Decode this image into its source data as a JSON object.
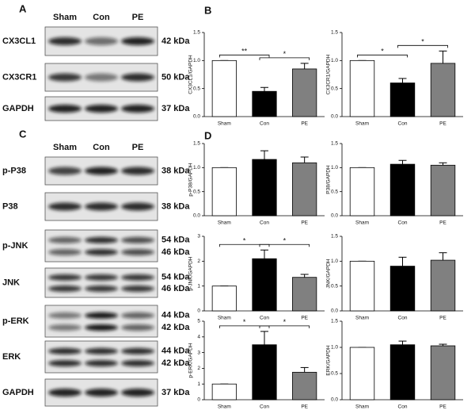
{
  "panel_labels": [
    "A",
    "B",
    "C",
    "D"
  ],
  "blots": [
    {
      "lanes": [
        "Sham",
        "Con",
        "PE"
      ],
      "rows": [
        {
          "label": "CX3CL1",
          "kda": [
            "42 kDa"
          ]
        },
        {
          "label": "CX3CR1",
          "kda": [
            "50 kDa"
          ]
        },
        {
          "label": "GAPDH",
          "kda": [
            "37 kDa"
          ]
        }
      ]
    },
    {
      "lanes": [
        "Sham",
        "Con",
        "PE"
      ],
      "rows": [
        {
          "label": "p-P38",
          "kda": [
            "38 kDa"
          ]
        },
        {
          "label": "P38",
          "kda": [
            "38 kDa"
          ]
        },
        {
          "label": "p-JNK",
          "kda": [
            "54 kDa",
            "46 kDa"
          ]
        },
        {
          "label": "JNK",
          "kda": [
            "54 kDa",
            "46 kDa"
          ]
        },
        {
          "label": "p-ERK",
          "kda": [
            "44 kDa",
            "42 kDa"
          ]
        },
        {
          "label": "ERK",
          "kda": [
            "44 kDa",
            "42 kDa"
          ]
        },
        {
          "label": "GAPDH",
          "kda": [
            "37 kDa"
          ]
        }
      ]
    }
  ],
  "chart_data": [
    {
      "type": "bar",
      "y_label": "CX3CL1/GAPDH",
      "categories": [
        "Sham",
        "Con",
        "PE"
      ],
      "values": [
        1.0,
        0.45,
        0.85
      ],
      "errors": [
        0,
        0.07,
        0.1
      ],
      "colors": [
        "#ffffff",
        "#000000",
        "#808080"
      ],
      "ylim": [
        0,
        1.5
      ],
      "yticks": [
        {
          "value": 0,
          "label": "0.0"
        },
        {
          "value": 0.5,
          "label": "0.5"
        },
        {
          "value": 1,
          "label": "1.0"
        },
        {
          "value": 1.5,
          "label": "1.5"
        }
      ],
      "annotations": [
        {
          "text": "**",
          "between": [
            "Sham",
            "Con"
          ]
        },
        {
          "text": "*",
          "between": [
            "Con",
            "PE"
          ]
        }
      ]
    },
    {
      "type": "bar",
      "y_label": "CX3CR1/GAPDH",
      "categories": [
        "Sham",
        "Con",
        "PE"
      ],
      "values": [
        1.0,
        0.6,
        0.95
      ],
      "errors": [
        0,
        0.08,
        0.22
      ],
      "colors": [
        "#ffffff",
        "#000000",
        "#808080"
      ],
      "ylim": [
        0,
        1.5
      ],
      "yticks": [
        {
          "value": 0,
          "label": "0.0"
        },
        {
          "value": 0.5,
          "label": "0.5"
        },
        {
          "value": 1,
          "label": "1.0"
        },
        {
          "value": 1.5,
          "label": "1.5"
        }
      ],
      "annotations": [
        {
          "text": "*",
          "between": [
            "Sham",
            "Con"
          ]
        },
        {
          "text": "*",
          "between": [
            "Con",
            "PE"
          ]
        }
      ]
    },
    {
      "type": "bar",
      "y_label": "p-P38/GAPDH",
      "categories": [
        "Sham",
        "Con",
        "PE"
      ],
      "values": [
        1.0,
        1.17,
        1.1
      ],
      "errors": [
        0,
        0.18,
        0.12
      ],
      "colors": [
        "#ffffff",
        "#000000",
        "#808080"
      ],
      "ylim": [
        0,
        1.5
      ],
      "yticks": [
        {
          "value": 0,
          "label": "0.0"
        },
        {
          "value": 0.5,
          "label": "0.5"
        },
        {
          "value": 1,
          "label": "1.0"
        },
        {
          "value": 1.5,
          "label": "1.5"
        }
      ],
      "annotations": []
    },
    {
      "type": "bar",
      "y_label": "P38/GAPDH",
      "categories": [
        "Sham",
        "Con",
        "PE"
      ],
      "values": [
        1.0,
        1.07,
        1.05
      ],
      "errors": [
        0,
        0.08,
        0.05
      ],
      "colors": [
        "#ffffff",
        "#000000",
        "#808080"
      ],
      "ylim": [
        0,
        1.5
      ],
      "yticks": [
        {
          "value": 0,
          "label": "0.0"
        },
        {
          "value": 0.5,
          "label": "0.5"
        },
        {
          "value": 1,
          "label": "1.0"
        },
        {
          "value": 1.5,
          "label": "1.5"
        }
      ],
      "annotations": []
    },
    {
      "type": "bar",
      "y_label": "p-JNK/GAPDH",
      "categories": [
        "Sham",
        "Con",
        "PE"
      ],
      "values": [
        1.0,
        2.1,
        1.35
      ],
      "errors": [
        0,
        0.35,
        0.12
      ],
      "colors": [
        "#ffffff",
        "#000000",
        "#808080"
      ],
      "ylim": [
        0,
        3
      ],
      "yticks": [
        0,
        1,
        2,
        3
      ],
      "annotations": [
        {
          "text": "*",
          "between": [
            "Sham",
            "Con"
          ]
        },
        {
          "text": "*",
          "between": [
            "Con",
            "PE"
          ]
        }
      ]
    },
    {
      "type": "bar",
      "y_label": "JNK/GAPDH",
      "categories": [
        "Sham",
        "Con",
        "PE"
      ],
      "values": [
        1.0,
        0.9,
        1.02
      ],
      "errors": [
        0,
        0.18,
        0.15
      ],
      "colors": [
        "#ffffff",
        "#000000",
        "#808080"
      ],
      "ylim": [
        0,
        1.5
      ],
      "yticks": [
        {
          "value": 0,
          "label": "0.0"
        },
        {
          "value": 0.5,
          "label": "0.5"
        },
        {
          "value": 1,
          "label": "1.0"
        },
        {
          "value": 1.5,
          "label": "1.5"
        }
      ],
      "annotations": []
    },
    {
      "type": "bar",
      "y_label": "p-ERK/GAPDH",
      "categories": [
        "Sham",
        "Con",
        "PE"
      ],
      "values": [
        1.0,
        3.5,
        1.75
      ],
      "errors": [
        0,
        0.85,
        0.3
      ],
      "colors": [
        "#ffffff",
        "#000000",
        "#808080"
      ],
      "ylim": [
        0,
        5
      ],
      "yticks": [
        0,
        1,
        2,
        3,
        4,
        5
      ],
      "annotations": [
        {
          "text": "*",
          "between": [
            "Sham",
            "Con"
          ]
        },
        {
          "text": "*",
          "between": [
            "Con",
            "PE"
          ]
        }
      ]
    },
    {
      "type": "bar",
      "y_label": "ERK/GAPDH",
      "categories": [
        "Sham",
        "Con",
        "PE"
      ],
      "values": [
        1.0,
        1.05,
        1.03
      ],
      "errors": [
        0,
        0.07,
        0.03
      ],
      "colors": [
        "#ffffff",
        "#000000",
        "#808080"
      ],
      "ylim": [
        0,
        1.5
      ],
      "yticks": [
        {
          "value": 0,
          "label": "0.0"
        },
        {
          "value": 0.5,
          "label": "0.5"
        },
        {
          "value": 1,
          "label": "1.0"
        },
        {
          "value": 1.5,
          "label": "1.5"
        }
      ],
      "annotations": []
    }
  ]
}
